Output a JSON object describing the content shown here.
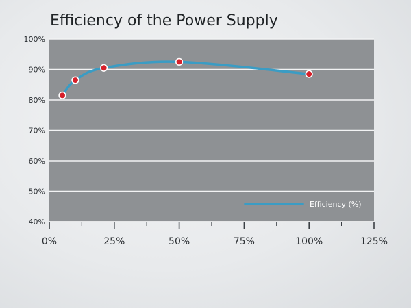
{
  "chart_data": {
    "type": "line",
    "title": "Efficiency of the Power Supply",
    "xlabel": "",
    "ylabel": "",
    "xlim": [
      0,
      125
    ],
    "ylim": [
      40,
      100
    ],
    "x_ticks": [
      0,
      25,
      50,
      75,
      100,
      125
    ],
    "x_tick_labels": [
      "0%",
      "25%",
      "50%",
      "75%",
      "100%",
      "125%"
    ],
    "y_ticks": [
      40,
      50,
      60,
      70,
      80,
      90,
      100
    ],
    "y_tick_labels": [
      "40%",
      "50%",
      "60%",
      "70%",
      "80%",
      "90%",
      "100%"
    ],
    "grid": "horizontal",
    "legend_position": "bottom-right",
    "series": [
      {
        "name": "Efficiency (%)",
        "color": "#3a9cc4",
        "marker_color": "#d7202a",
        "x": [
          5,
          10,
          21,
          50,
          100
        ],
        "y": [
          81.5,
          86.5,
          90.5,
          92.5,
          88.5
        ]
      }
    ]
  },
  "colors": {
    "plot_background": "#8e9194",
    "gridline": "#f2f3f4",
    "line": "#3a9cc4",
    "marker_fill": "#d7202a",
    "marker_stroke": "#ffffff"
  }
}
